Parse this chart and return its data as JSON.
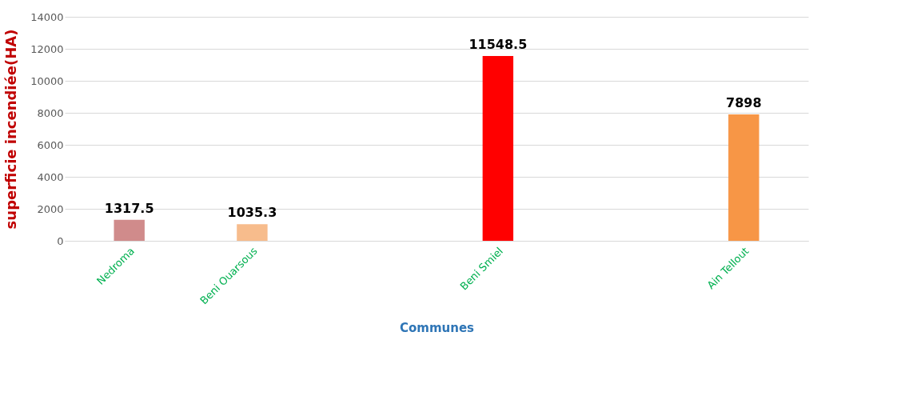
{
  "chart_data": {
    "type": "bar",
    "xlabel": "Communes",
    "ylabel": "superficie incendiée(HA)",
    "categories": [
      "Nedroma",
      "Beni Ouarsous",
      null,
      "Beni Smiel",
      null,
      "Ain Tellout"
    ],
    "values": [
      1317.5,
      1035.3,
      null,
      11548.5,
      null,
      7898
    ],
    "colors": [
      "#d08b8b",
      "#f7bc8c",
      null,
      "#ff0000",
      null,
      "#f79646"
    ],
    "ylim": [
      0,
      14000
    ],
    "yticks": [
      0,
      2000,
      4000,
      6000,
      8000,
      10000,
      12000,
      14000
    ],
    "grid": "y",
    "data_labels": true
  }
}
